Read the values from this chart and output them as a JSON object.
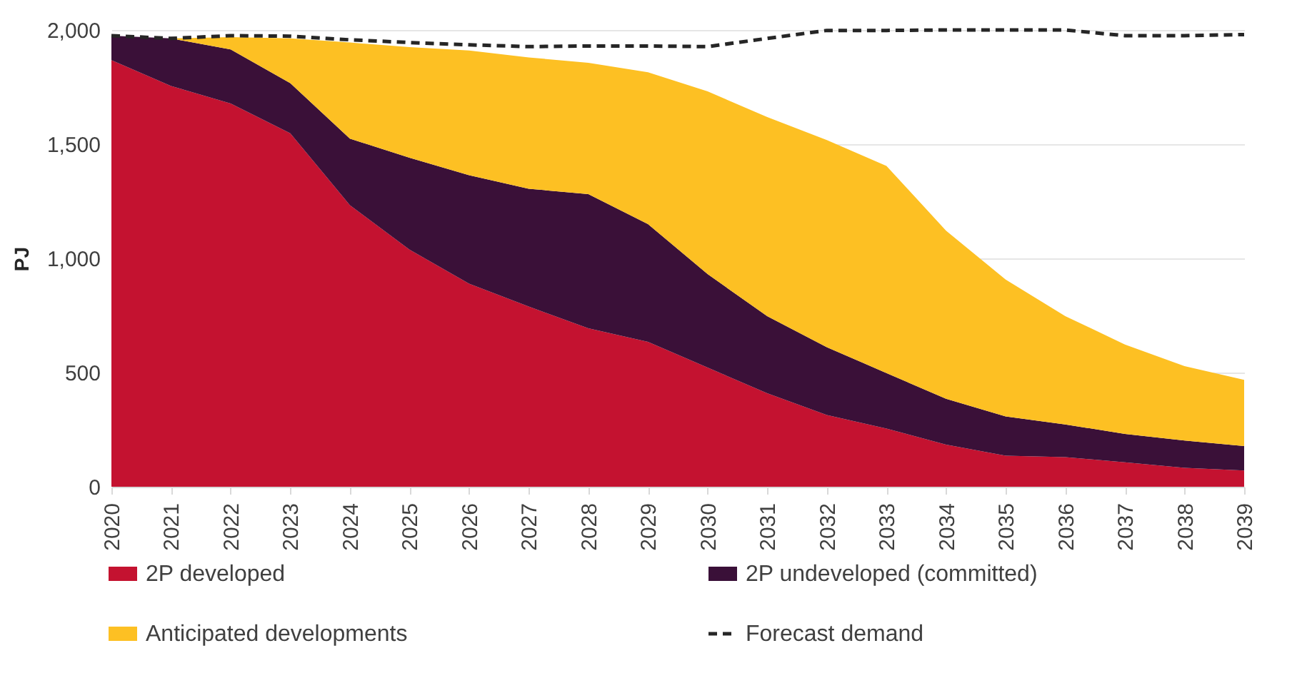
{
  "chart_data": {
    "type": "area",
    "stacked": true,
    "ylabel": "PJ",
    "categories": [
      "2020",
      "2021",
      "2022",
      "2023",
      "2024",
      "2025",
      "2026",
      "2027",
      "2028",
      "2029",
      "2030",
      "2031",
      "2032",
      "2033",
      "2034",
      "2035",
      "2036",
      "2037",
      "2038",
      "2039"
    ],
    "series": [
      {
        "name": "2P developed",
        "color": "#c41230",
        "values": [
          1868,
          1755,
          1678,
          1548,
          1233,
          1038,
          889,
          789,
          694,
          634,
          522,
          409,
          314,
          255,
          184,
          136,
          130,
          107,
          83,
          71
        ]
      },
      {
        "name": "2P undeveloped (committed)",
        "color": "#3a1038",
        "values": [
          107,
          208,
          237,
          219,
          291,
          403,
          475,
          516,
          587,
          516,
          409,
          338,
          297,
          243,
          201,
          172,
          143,
          124,
          119,
          107
        ]
      },
      {
        "name": "Anticipated developments",
        "color": "#fdc023",
        "values": [
          0,
          0,
          54,
          196,
          421,
          484,
          546,
          575,
          575,
          665,
          800,
          872,
          907,
          907,
          736,
          599,
          474,
          392,
          326,
          290
        ]
      },
      {
        "name": "Forecast demand",
        "type": "line",
        "color": "#262626",
        "line_style": "dashed",
        "values": [
          1975,
          1963,
          1975,
          1973,
          1957,
          1945,
          1935,
          1927,
          1930,
          1930,
          1927,
          1963,
          1998,
          1998,
          2000,
          2000,
          2000,
          1975,
          1975,
          1980
        ]
      }
    ],
    "ylim": [
      0,
      2000
    ],
    "yticks": [
      0,
      500,
      {
        "value": 1000,
        "label": "1,000"
      },
      {
        "value": 1500,
        "label": "1,500"
      },
      {
        "value": 2000,
        "label": "2,000"
      }
    ],
    "grid": "y",
    "legend": "bottom"
  }
}
